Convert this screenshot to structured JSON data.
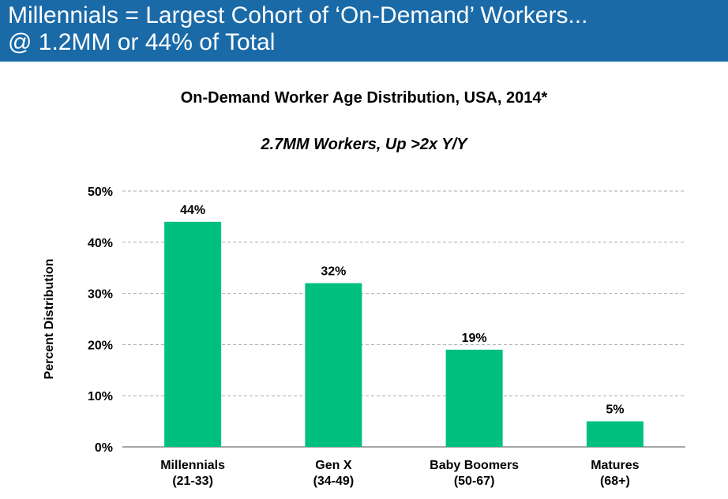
{
  "header": {
    "title_line1": "Millennials = Largest Cohort of ‘On-Demand’ Workers...",
    "title_line2": "@ 1.2MM or 44% of Total"
  },
  "chart_data": {
    "type": "bar",
    "title": "On-Demand Worker Age Distribution, USA, 2014*",
    "subtitle": "2.7MM Workers, Up >2x Y/Y",
    "ylabel": "Percent Distribution",
    "xlabel": "",
    "categories": [
      [
        "Millennials",
        "(21-33)"
      ],
      [
        "Gen X",
        "(34-49)"
      ],
      [
        "Baby Boomers",
        "(50-67)"
      ],
      [
        "Matures",
        "(68+)"
      ]
    ],
    "values": [
      44,
      32,
      19,
      5
    ],
    "data_labels": [
      "44%",
      "32%",
      "19%",
      "5%"
    ],
    "yticks": [
      "0%",
      "10%",
      "20%",
      "30%",
      "40%",
      "50%"
    ],
    "ylim": [
      0,
      50
    ],
    "grid": true,
    "bar_color": "#00c080"
  }
}
